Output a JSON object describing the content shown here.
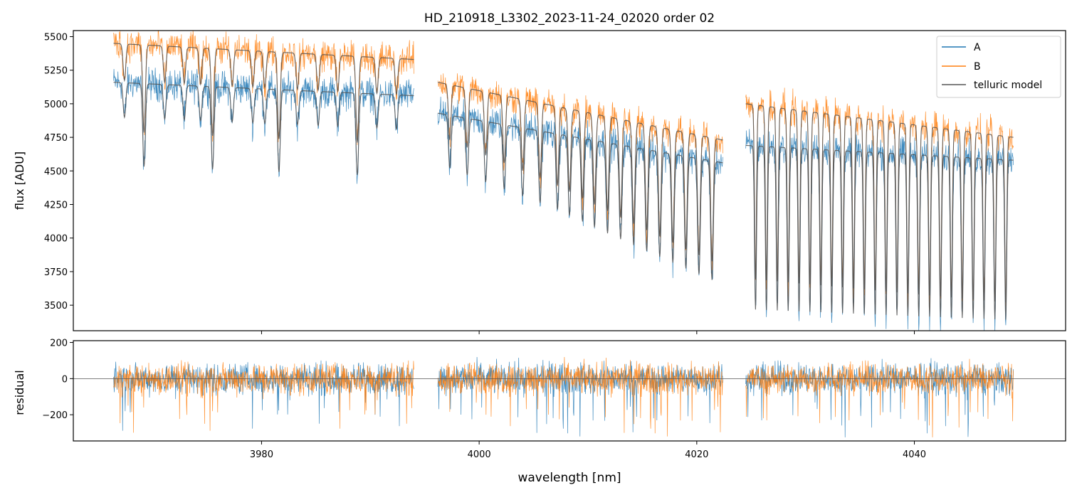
{
  "chart_data": {
    "type": "line",
    "title": "HD_210918_L3302_2023-11-24_02020  order 02",
    "xlabel": "wavelength [nm]",
    "xlim": [
      3962.7,
      4053.9
    ],
    "x_ticks": [
      3980,
      4000,
      4020,
      4040
    ],
    "x_tick_labels": [
      "3980",
      "4000",
      "4020",
      "4040"
    ],
    "legend_position": "upper right",
    "panels": [
      {
        "name": "flux",
        "ylabel": "flux [ADU]",
        "ylim": [
          3310,
          5545
        ],
        "y_ticks": [
          3500,
          3750,
          4000,
          4250,
          4500,
          4750,
          5000,
          5250,
          5500
        ],
        "y_tick_labels": [
          "3500",
          "3750",
          "4000",
          "4250",
          "4500",
          "4750",
          "5000",
          "5250",
          "5500"
        ],
        "series": [
          {
            "name": "A",
            "color": "#1f77b4",
            "segments": [
              {
                "x_start": 3966.4,
                "x_end": 3994.0,
                "level_start": 5160,
                "level_end": 5060
              },
              {
                "x_start": 3996.2,
                "x_end": 4022.4,
                "level_start": 4930,
                "level_end": 4560
              },
              {
                "x_start": 4024.5,
                "x_end": 4049.1,
                "level_start": 4690,
                "level_end": 4580
              }
            ]
          },
          {
            "name": "B",
            "color": "#ff7f0e",
            "segments": [
              {
                "x_start": 3966.4,
                "x_end": 3994.0,
                "level_start": 5450,
                "level_end": 5330
              },
              {
                "x_start": 3996.2,
                "x_end": 4022.4,
                "level_start": 5160,
                "level_end": 4730
              },
              {
                "x_start": 4024.5,
                "x_end": 4049.1,
                "level_start": 5000,
                "level_end": 4750
              }
            ]
          },
          {
            "name": "telluric model",
            "color": "#555555"
          }
        ]
      },
      {
        "name": "residual",
        "ylabel": "residual",
        "ylim": [
          -345,
          210
        ],
        "y_ticks": [
          -200,
          0,
          200
        ],
        "y_tick_labels": [
          "−200",
          "0",
          "200"
        ],
        "reference_line": 0,
        "series": [
          {
            "name": "A",
            "color": "#1f77b4"
          },
          {
            "name": "B",
            "color": "#ff7f0e"
          }
        ]
      }
    ]
  }
}
